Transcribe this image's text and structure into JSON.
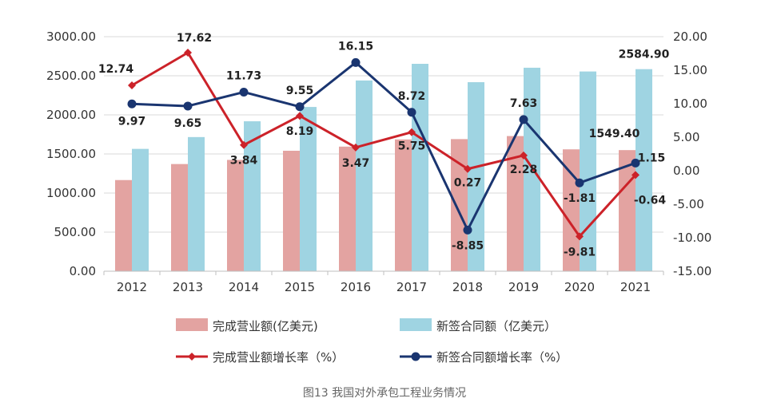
{
  "chart_data": {
    "type": "bar+line",
    "title": "",
    "categories": [
      "2012",
      "2013",
      "2014",
      "2015",
      "2016",
      "2017",
      "2018",
      "2019",
      "2020",
      "2021"
    ],
    "y_left": {
      "ylim": [
        0,
        3000
      ],
      "ticks": [
        "0.00",
        "500.00",
        "1000.00",
        "1500.00",
        "2000.00",
        "2500.00",
        "3000.00"
      ]
    },
    "y_right": {
      "ylim": [
        -15,
        20
      ],
      "ticks": [
        "-15.00",
        "-10.00",
        "-5.00",
        "0.00",
        "5.00",
        "10.00",
        "15.00",
        "20.00"
      ]
    },
    "grid": true,
    "legend_position": "bottom",
    "series": [
      {
        "name": "完成营业额(亿美元)",
        "kind": "bar",
        "axis": "left",
        "color": "#e3a3a1",
        "values": [
          1166,
          1371,
          1424,
          1541,
          1594,
          1686,
          1690,
          1729,
          1559,
          1549.4
        ]
      },
      {
        "name": "新签合同额（亿美元）",
        "kind": "bar",
        "axis": "left",
        "color": "#9fd4e2",
        "values": [
          1565,
          1716,
          1918,
          2101,
          2440,
          2653,
          2418,
          2603,
          2555,
          2584.9
        ]
      },
      {
        "name": "完成营业额增长率（%）",
        "kind": "line",
        "axis": "right",
        "color": "#cc2229",
        "values": [
          12.74,
          17.62,
          3.84,
          8.19,
          3.47,
          5.75,
          0.27,
          2.28,
          -9.81,
          -0.64
        ]
      },
      {
        "name": "新签合同额增长率（%）",
        "kind": "line",
        "axis": "right",
        "color": "#1a3570",
        "values": [
          9.97,
          9.65,
          11.73,
          9.55,
          16.15,
          8.72,
          -8.85,
          7.63,
          -1.81,
          1.15
        ]
      }
    ],
    "data_labels": [
      {
        "text": "12.74",
        "series": 2,
        "index": 0
      },
      {
        "text": "17.62",
        "series": 2,
        "index": 1
      },
      {
        "text": "3.84",
        "series": 2,
        "index": 2
      },
      {
        "text": "8.19",
        "series": 2,
        "index": 3
      },
      {
        "text": "3.47",
        "series": 2,
        "index": 4
      },
      {
        "text": "5.75",
        "series": 2,
        "index": 5
      },
      {
        "text": "0.27",
        "series": 2,
        "index": 6
      },
      {
        "text": "2.28",
        "series": 2,
        "index": 7
      },
      {
        "text": "-9.81",
        "series": 2,
        "index": 8
      },
      {
        "text": "-0.64",
        "series": 2,
        "index": 9
      },
      {
        "text": "9.97",
        "series": 3,
        "index": 0
      },
      {
        "text": "9.65",
        "series": 3,
        "index": 1
      },
      {
        "text": "11.73",
        "series": 3,
        "index": 2
      },
      {
        "text": "9.55",
        "series": 3,
        "index": 3
      },
      {
        "text": "16.15",
        "series": 3,
        "index": 4
      },
      {
        "text": "8.72",
        "series": 3,
        "index": 5
      },
      {
        "text": "-8.85",
        "series": 3,
        "index": 6
      },
      {
        "text": "7.63",
        "series": 3,
        "index": 7
      },
      {
        "text": "-1.81",
        "series": 3,
        "index": 8
      },
      {
        "text": "1.15",
        "series": 3,
        "index": 9
      },
      {
        "text": "2584.90",
        "series": 1,
        "index": 9
      },
      {
        "text": "1549.40",
        "series": 0,
        "index": 9
      }
    ],
    "caption": "图13 我国对外承包工程业务情况"
  }
}
